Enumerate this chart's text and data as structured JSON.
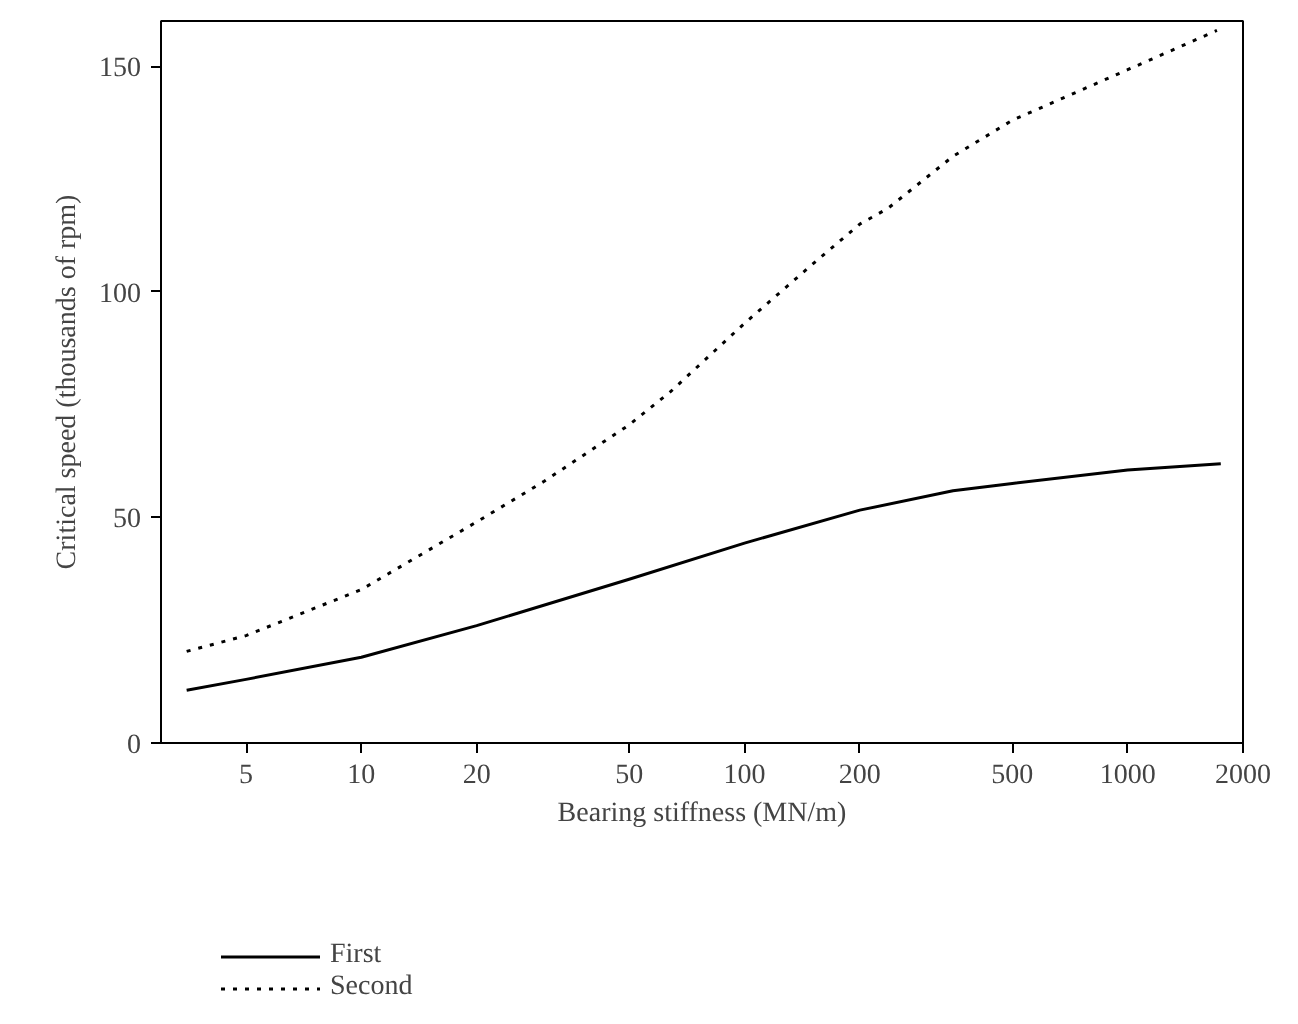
{
  "chart_data": {
    "type": "line",
    "xlabel": "Bearing stiffness (MN/m)",
    "ylabel": "Critical speed (thousands of rpm)",
    "log": "x",
    "xlim": [
      3,
      2000
    ],
    "xticks": [
      5,
      10,
      20,
      50,
      100,
      200,
      500,
      1000,
      2000
    ],
    "ylim": [
      0,
      160
    ],
    "yticks": [
      0,
      50,
      100,
      150
    ],
    "grid": false,
    "legend": "bottom",
    "marker": "none",
    "series": [
      {
        "name": "First",
        "color": "#000000",
        "line_style": "solid",
        "x": [
          3.5,
          5,
          10,
          20,
          50,
          100,
          200,
          350,
          500,
          1000,
          1750
        ],
        "values": [
          11.7,
          14.1,
          19,
          26,
          36.3,
          44.3,
          51.6,
          55.9,
          57.5,
          60.5,
          61.9
        ]
      },
      {
        "name": "Second",
        "color": "#000000",
        "line_style": "dotted",
        "x": [
          3.5,
          5,
          10,
          20,
          30,
          50,
          64,
          100,
          150,
          200,
          237,
          350,
          500,
          1000,
          1710
        ],
        "values": [
          20.3,
          23.8,
          34,
          49,
          58,
          70.5,
          77.8,
          93,
          106,
          115,
          118.5,
          130,
          138,
          149.2,
          157.9
        ]
      }
    ]
  }
}
